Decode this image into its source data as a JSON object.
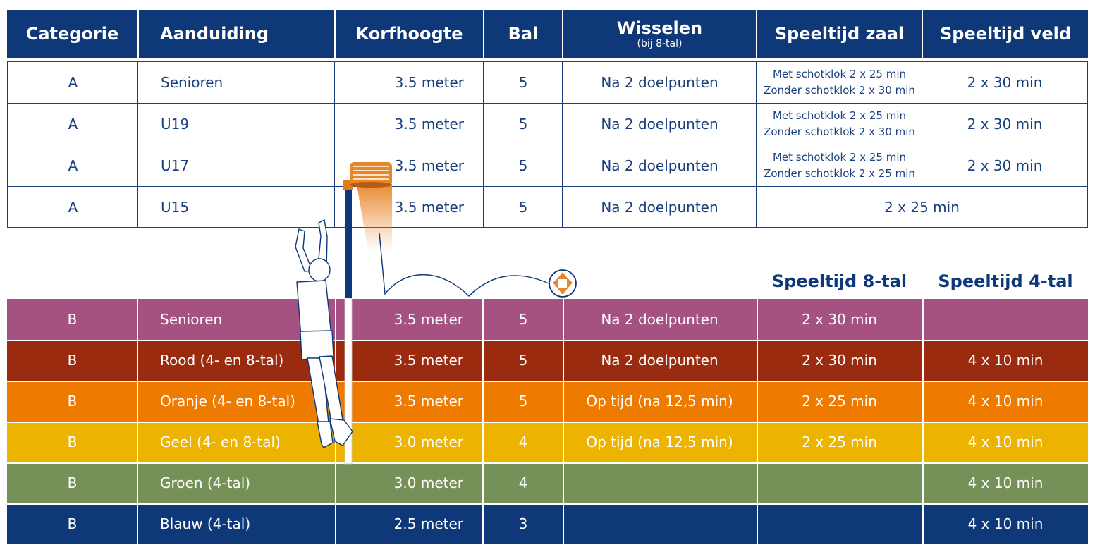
{
  "header": {
    "categorie": "Categorie",
    "aanduiding": "Aanduiding",
    "korfhoogte": "Korfhoogte",
    "bal": "Bal",
    "wisselen": "Wisselen",
    "wisselen_sub": "(bij 8-tal)",
    "speeltijd_zaal": "Speeltijd zaal",
    "speeltijd_veld": "Speeltijd veld"
  },
  "rows_a": [
    {
      "cat": "A",
      "name": "Senioren",
      "height": "3.5 meter",
      "ball": "5",
      "swap": "Na 2 doelpunten",
      "zaal1": "Met schotklok 2 x 25 min",
      "zaal2": "Zonder schotklok 2 x 30 min",
      "veld": "2 x 30 min"
    },
    {
      "cat": "A",
      "name": "U19",
      "height": "3.5 meter",
      "ball": "5",
      "swap": "Na 2 doelpunten",
      "zaal1": "Met schotklok 2 x 25 min",
      "zaal2": "Zonder schotklok 2 x 30 min",
      "veld": "2 x 30 min"
    },
    {
      "cat": "A",
      "name": "U17",
      "height": "3.5 meter",
      "ball": "5",
      "swap": "Na 2 doelpunten",
      "zaal1": "Met schotklok 2 x 25 min",
      "zaal2": "Zonder schotklok 2 x 25 min",
      "veld": "2 x 30 min"
    },
    {
      "cat": "A",
      "name": "U15",
      "height": "3.5 meter",
      "ball": "5",
      "swap": "Na 2 doelpunten",
      "merged": "2 x 25 min"
    }
  ],
  "subheader": {
    "speeltijd_8": "Speeltijd 8-tal",
    "speeltijd_4": "Speeltijd 4-tal"
  },
  "rows_b": [
    {
      "cat": "B",
      "name": "Senioren",
      "height": "3.5 meter",
      "ball": "5",
      "swap": "Na 2 doelpunten",
      "t8": "2 x 30 min",
      "t4": "",
      "color": "#a55282"
    },
    {
      "cat": "B",
      "name": "Rood (4- en 8-tal)",
      "height": "3.5 meter",
      "ball": "5",
      "swap": "Na 2 doelpunten",
      "t8": "2 x 30 min",
      "t4": "4 x 10 min",
      "color": "#9b2b0f"
    },
    {
      "cat": "B",
      "name": "Oranje (4- en 8-tal)",
      "height": "3.5 meter",
      "ball": "5",
      "swap": "Op tijd (na 12,5 min)",
      "t8": "2 x 25 min",
      "t4": "4 x 10 min",
      "color": "#ee7a00"
    },
    {
      "cat": "B",
      "name": "Geel (4- en 8-tal)",
      "height": "3.0 meter",
      "ball": "4",
      "swap": "Op tijd (na 12,5 min)",
      "t8": "2 x 25 min",
      "t4": "4 x 10 min",
      "color": "#ecb400"
    },
    {
      "cat": "B",
      "name": "Groen (4-tal)",
      "height": "3.0 meter",
      "ball": "4",
      "swap": "",
      "t8": "",
      "t4": "4 x 10 min",
      "color": "#759157"
    },
    {
      "cat": "B",
      "name": "Blauw (4-tal)",
      "height": "2.5 meter",
      "ball": "3",
      "swap": "",
      "t8": "",
      "t4": "4 x 10 min",
      "color": "#0f3878"
    }
  ],
  "colors": {
    "header_blue": "#0f3878",
    "text_blue": "#1b3f7d",
    "korf_orange": "#e8862a"
  },
  "icons": [
    "korfball-post-illustration",
    "player-illustration",
    "ball-icon"
  ]
}
